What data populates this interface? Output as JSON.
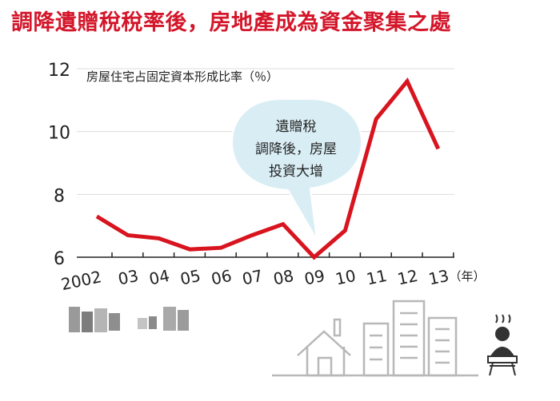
{
  "headline": "調降遺贈稅稅率後，房地產成為資金聚集之處",
  "colors": {
    "headline": "#d4162a",
    "line": "#d8141f",
    "grid": "#dcdcdc",
    "axis": "#222222",
    "callout_fill": "#d9eef4",
    "illustration": "#b8b8b8"
  },
  "chart_data": {
    "type": "line",
    "title": "房屋住宅占固定資本形成比率（％）",
    "x": [
      "2002",
      "03",
      "04",
      "05",
      "06",
      "07",
      "08",
      "09",
      "10",
      "11",
      "12",
      "13"
    ],
    "x_unit": "（年）",
    "y_ticks": [
      "6",
      "8",
      "10",
      "12"
    ],
    "ylim": [
      6,
      12
    ],
    "grid": "horizontal",
    "series": [
      {
        "values": [
          7.3,
          6.7,
          6.6,
          6.25,
          6.3,
          6.7,
          7.05,
          6.0,
          6.85,
          10.4,
          11.6,
          9.45
        ]
      }
    ],
    "annotation": {
      "lines": [
        "遺贈稅",
        "調降後，房屋",
        "投資大增"
      ],
      "points_to": "09"
    }
  },
  "illustration": {
    "icons": [
      "house-icon",
      "buildings-icon",
      "person-on-money-icon"
    ]
  }
}
